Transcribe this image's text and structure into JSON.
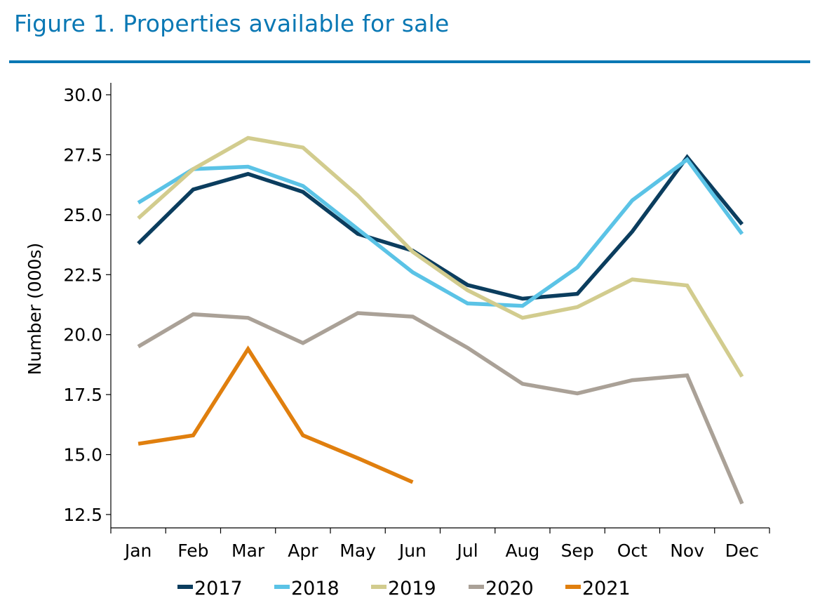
{
  "figure": {
    "title": "Figure 1. Properties available for sale",
    "accent_color": "#0a78b4"
  },
  "chart_data": {
    "type": "line",
    "title": "Figure 1. Properties available for sale",
    "xlabel": "",
    "ylabel": "Number (000s)",
    "ylim": [
      12.0,
      30.5
    ],
    "yticks": [
      12.5,
      15.0,
      17.5,
      20.0,
      22.5,
      25.0,
      27.5,
      30.0
    ],
    "ytick_labels": [
      "12.5",
      "15.0",
      "17.5",
      "20.0",
      "22.5",
      "25.0",
      "27.5",
      "30.0"
    ],
    "categories": [
      "Jan",
      "Feb",
      "Mar",
      "Apr",
      "May",
      "Jun",
      "Jul",
      "Aug",
      "Sep",
      "Oct",
      "Nov",
      "Dec"
    ],
    "grid": false,
    "legend_position": "bottom",
    "series": [
      {
        "name": "2017",
        "color": "#0b3d5e",
        "values": [
          23.8,
          26.05,
          26.7,
          25.95,
          24.2,
          23.5,
          22.07,
          21.5,
          21.7,
          24.3,
          27.4,
          24.6
        ]
      },
      {
        "name": "2018",
        "color": "#5bc3e6",
        "values": [
          25.5,
          26.9,
          27.0,
          26.2,
          24.4,
          22.6,
          21.3,
          21.2,
          22.8,
          25.6,
          27.3,
          24.2
        ]
      },
      {
        "name": "2019",
        "color": "#d2cc8e",
        "values": [
          24.85,
          26.9,
          28.2,
          27.8,
          25.8,
          23.45,
          21.85,
          20.7,
          21.15,
          22.3,
          22.05,
          18.25
        ]
      },
      {
        "name": "2020",
        "color": "#aaa197",
        "values": [
          19.5,
          20.85,
          20.7,
          19.65,
          20.9,
          20.75,
          19.45,
          17.95,
          17.55,
          18.1,
          18.3,
          12.95
        ]
      },
      {
        "name": "2021",
        "color": "#e07f0e",
        "values": [
          15.45,
          15.8,
          19.4,
          15.8,
          14.85,
          13.85,
          null,
          null,
          null,
          null,
          null,
          null
        ]
      }
    ]
  }
}
